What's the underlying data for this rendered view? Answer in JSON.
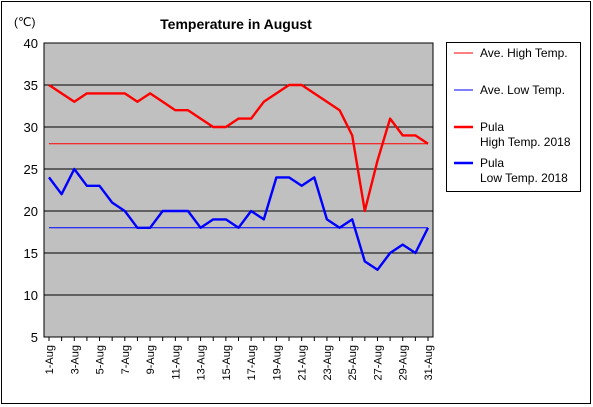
{
  "chart_data": {
    "type": "line",
    "title": "Temperature in August",
    "unit_label": "(℃)",
    "ylim": [
      5,
      40
    ],
    "yticks": [
      5,
      10,
      15,
      20,
      25,
      30,
      35,
      40
    ],
    "grid": true,
    "legend_position": "right",
    "categories": [
      "1-Aug",
      "2-Aug",
      "3-Aug",
      "4-Aug",
      "5-Aug",
      "6-Aug",
      "7-Aug",
      "8-Aug",
      "9-Aug",
      "10-Aug",
      "11-Aug",
      "12-Aug",
      "13-Aug",
      "14-Aug",
      "15-Aug",
      "16-Aug",
      "17-Aug",
      "18-Aug",
      "19-Aug",
      "20-Aug",
      "21-Aug",
      "22-Aug",
      "23-Aug",
      "24-Aug",
      "25-Aug",
      "26-Aug",
      "27-Aug",
      "28-Aug",
      "29-Aug",
      "30-Aug",
      "31-Aug"
    ],
    "tick_labels": [
      "1-Aug",
      "3-Aug",
      "5-Aug",
      "7-Aug",
      "9-Aug",
      "11-Aug",
      "13-Aug",
      "15-Aug",
      "17-Aug",
      "19-Aug",
      "21-Aug",
      "23-Aug",
      "25-Aug",
      "27-Aug",
      "29-Aug",
      "31-Aug"
    ],
    "series": [
      {
        "name": "Ave. High Temp.",
        "color": "#ff0000",
        "style": "thin",
        "values": [
          28,
          28,
          28,
          28,
          28,
          28,
          28,
          28,
          28,
          28,
          28,
          28,
          28,
          28,
          28,
          28,
          28,
          28,
          28,
          28,
          28,
          28,
          28,
          28,
          28,
          28,
          28,
          28,
          28,
          28,
          28
        ]
      },
      {
        "name": "Ave. Low Temp.",
        "color": "#0000ff",
        "style": "thin",
        "values": [
          18,
          18,
          18,
          18,
          18,
          18,
          18,
          18,
          18,
          18,
          18,
          18,
          18,
          18,
          18,
          18,
          18,
          18,
          18,
          18,
          18,
          18,
          18,
          18,
          18,
          18,
          18,
          18,
          18,
          18,
          18
        ]
      },
      {
        "name": "Pula\nHigh Temp. 2018",
        "color": "#ff0000",
        "style": "thick",
        "values": [
          35,
          34,
          33,
          34,
          34,
          34,
          34,
          33,
          34,
          33,
          32,
          32,
          31,
          30,
          30,
          31,
          31,
          33,
          34,
          35,
          35,
          34,
          33,
          32,
          29,
          20,
          26,
          31,
          29,
          29,
          28
        ]
      },
      {
        "name": "Pula\nLow Temp. 2018",
        "color": "#0000ff",
        "style": "thick",
        "values": [
          24,
          22,
          25,
          23,
          23,
          21,
          20,
          18,
          18,
          20,
          20,
          20,
          18,
          19,
          19,
          18,
          20,
          19,
          24,
          24,
          23,
          24,
          19,
          18,
          19,
          14,
          13,
          15,
          16,
          15,
          18
        ]
      }
    ]
  }
}
